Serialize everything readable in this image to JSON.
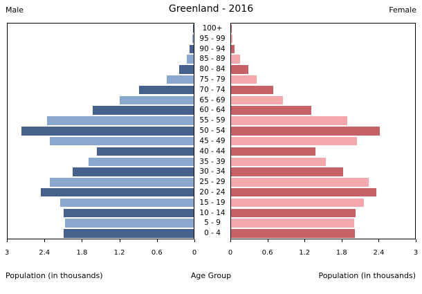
{
  "header": {
    "title": "Greenland - 2016",
    "male_label": "Male",
    "female_label": "Female"
  },
  "footer": {
    "left_xlabel": "Population (in thousands)",
    "center_label": "Age Group",
    "right_xlabel": "Population (in thousands)"
  },
  "colors": {
    "male_dark": "#46628c",
    "male_light": "#8aa8cd",
    "female_dark": "#c66167",
    "female_light": "#f2a8ac",
    "axis": "#000000",
    "background": "#ffffff"
  },
  "chart_data": {
    "type": "bar",
    "subtype": "population_pyramid",
    "title": "Greenland - 2016",
    "center_axis_label": "Age Group",
    "xlabel": "Population (in thousands)",
    "xlim": [
      0,
      3
    ],
    "grid": false,
    "legend_position": "none",
    "categories": [
      "0 - 4",
      "5 - 9",
      "10 - 14",
      "15 - 19",
      "20 - 24",
      "25 - 29",
      "30 - 34",
      "35 - 39",
      "40 - 44",
      "45 - 49",
      "50 - 54",
      "55 - 59",
      "60 - 64",
      "65 - 69",
      "70 - 74",
      "75 - 79",
      "80 - 84",
      "85 - 89",
      "90 - 94",
      "95 - 99",
      "100+"
    ],
    "series": [
      {
        "name": "Male",
        "side": "left",
        "values": [
          2.1,
          2.07,
          2.1,
          2.15,
          2.47,
          2.32,
          1.95,
          1.69,
          1.56,
          2.32,
          2.78,
          2.36,
          1.63,
          1.19,
          0.88,
          0.43,
          0.23,
          0.11,
          0.07,
          0.02,
          0.01
        ]
      },
      {
        "name": "Female",
        "side": "right",
        "values": [
          2.02,
          2.01,
          2.03,
          2.17,
          2.37,
          2.24,
          1.83,
          1.55,
          1.38,
          2.05,
          2.42,
          1.9,
          1.31,
          0.85,
          0.69,
          0.42,
          0.28,
          0.15,
          0.06,
          0.02,
          0.01
        ]
      }
    ],
    "x_ticks_left": [
      "3",
      "2.4",
      "1.8",
      "1.2",
      "0.6",
      "0"
    ],
    "x_ticks_right": [
      "0",
      "0.6",
      "1.2",
      "1.8",
      "2.4",
      "3"
    ]
  }
}
